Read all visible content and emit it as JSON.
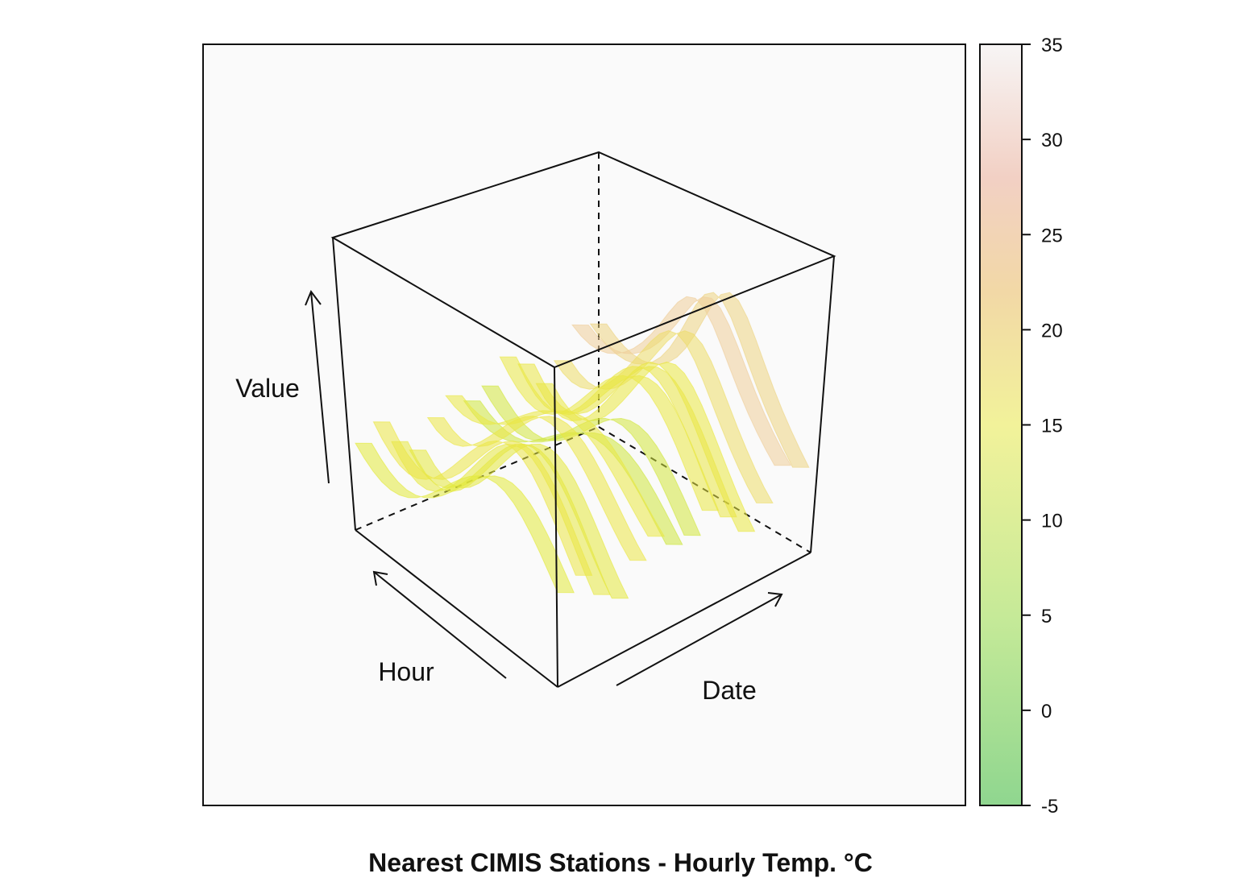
{
  "chart_data": {
    "type": "wireframe-3d-surface",
    "title": "Nearest CIMIS Stations - Hourly Temp. °C",
    "axes": {
      "x_label": "Hour",
      "y_label": "Date",
      "z_label": "Value"
    },
    "colorkey": {
      "ticks": [
        35,
        30,
        25,
        20,
        15,
        10,
        5,
        0,
        -5
      ],
      "tick_labels": [
        "35",
        "30",
        "25",
        "20",
        "15",
        "10",
        "5",
        "0",
        "-5"
      ],
      "zlim": [
        -5,
        35
      ],
      "color_stops": [
        {
          "value": -5,
          "color": "#8fd68f"
        },
        {
          "value": 5,
          "color": "#c6ea98"
        },
        {
          "value": 15,
          "color": "#f2f29a"
        },
        {
          "value": 22,
          "color": "#f2d8a6"
        },
        {
          "value": 28,
          "color": "#f2d0c4"
        },
        {
          "value": 35,
          "color": "#f7f5f5"
        }
      ]
    },
    "surface": {
      "hour_range": [
        0,
        23
      ],
      "day_count": 14,
      "approx_min_value": 0,
      "approx_max_value": 27
    },
    "colors": {
      "panel_background": "#fafafa",
      "frame": "#111111",
      "surface_low": "#5cc83c",
      "surface_mid": "#e6ec3a",
      "surface_high": "#efc6a8"
    }
  }
}
